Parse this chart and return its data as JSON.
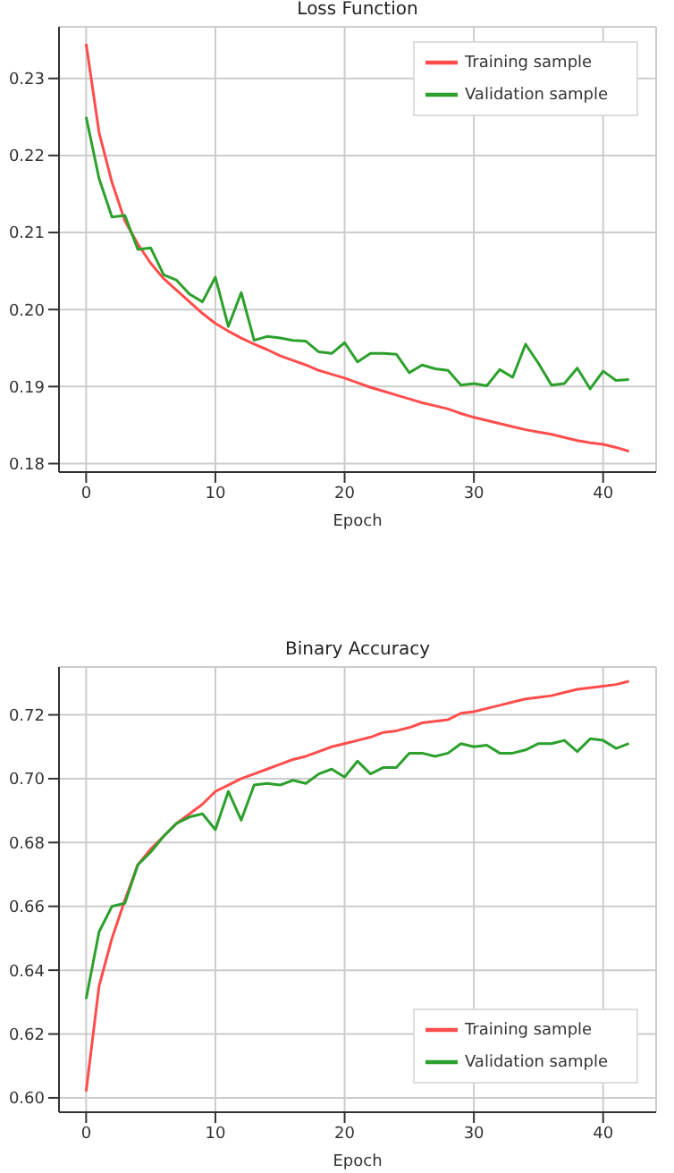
{
  "chart_data": [
    {
      "type": "line",
      "title": "Loss Function",
      "xlabel": "Epoch",
      "x": [
        0,
        1,
        2,
        3,
        4,
        5,
        6,
        7,
        8,
        9,
        10,
        11,
        12,
        13,
        14,
        15,
        16,
        17,
        18,
        19,
        20,
        21,
        22,
        23,
        24,
        25,
        26,
        27,
        28,
        29,
        30,
        31,
        32,
        33,
        34,
        35,
        36,
        37,
        38,
        39,
        40,
        41,
        42
      ],
      "series": [
        {
          "name": "Training sample",
          "color": "#ff4d4d",
          "values": [
            0.2345,
            0.223,
            0.2165,
            0.2115,
            0.2085,
            0.206,
            0.204,
            0.2025,
            0.201,
            0.1995,
            0.1982,
            0.1972,
            0.1963,
            0.1955,
            0.1948,
            0.194,
            0.1934,
            0.1928,
            0.1921,
            0.1916,
            0.1911,
            0.1905,
            0.1899,
            0.1894,
            0.1889,
            0.1884,
            0.1879,
            0.1875,
            0.1871,
            0.1865,
            0.186,
            0.1856,
            0.1852,
            0.1848,
            0.1844,
            0.1841,
            0.1838,
            0.1834,
            0.183,
            0.1827,
            0.1825,
            0.1821,
            0.1816
          ]
        },
        {
          "name": "Validation sample",
          "color": "#2ca02c",
          "values": [
            0.225,
            0.217,
            0.212,
            0.2122,
            0.2078,
            0.208,
            0.2045,
            0.2038,
            0.202,
            0.201,
            0.2042,
            0.1978,
            0.2022,
            0.196,
            0.1965,
            0.1963,
            0.196,
            0.1959,
            0.1945,
            0.1943,
            0.1957,
            0.1932,
            0.1943,
            0.1943,
            0.1942,
            0.1918,
            0.1928,
            0.1923,
            0.1921,
            0.1902,
            0.1904,
            0.1901,
            0.1922,
            0.1912,
            0.1955,
            0.193,
            0.1902,
            0.1904,
            0.1924,
            0.1897,
            0.192,
            0.1908,
            0.1909
          ]
        }
      ],
      "xlim": [
        -2.1,
        44.1
      ],
      "xticks": [
        0,
        10,
        20,
        30,
        40
      ],
      "ylim": [
        0.1789,
        0.2367
      ],
      "yticks": [
        0.18,
        0.19,
        {
          "value": 0.2,
          "label": "0.20"
        },
        0.21,
        0.22,
        0.23
      ],
      "grid": true,
      "legend": "top right",
      "marker": "none",
      "line_style": "solid"
    },
    {
      "type": "line",
      "title": "Binary Accuracy",
      "xlabel": "Epoch",
      "x": [
        0,
        1,
        2,
        3,
        4,
        5,
        6,
        7,
        8,
        9,
        10,
        11,
        12,
        13,
        14,
        15,
        16,
        17,
        18,
        19,
        20,
        21,
        22,
        23,
        24,
        25,
        26,
        27,
        28,
        29,
        30,
        31,
        32,
        33,
        34,
        35,
        36,
        37,
        38,
        39,
        40,
        41,
        42
      ],
      "series": [
        {
          "name": "Training sample",
          "color": "#ff4d4d",
          "values": [
            0.602,
            0.635,
            0.65,
            0.662,
            0.673,
            0.678,
            0.682,
            0.686,
            0.689,
            0.692,
            0.696,
            0.698,
            0.7,
            0.7015,
            0.703,
            0.7045,
            0.706,
            0.707,
            0.7085,
            0.71,
            0.711,
            0.712,
            0.713,
            0.7145,
            0.715,
            0.716,
            0.7175,
            0.718,
            0.7185,
            0.7205,
            0.721,
            0.722,
            0.723,
            0.724,
            0.725,
            0.7255,
            0.726,
            0.727,
            0.728,
            0.7285,
            0.729,
            0.7295,
            0.7305
          ]
        },
        {
          "name": "Validation sample",
          "color": "#2ca02c",
          "values": [
            0.631,
            0.652,
            0.66,
            0.661,
            0.673,
            0.677,
            0.682,
            0.686,
            0.688,
            0.689,
            0.684,
            0.696,
            0.687,
            0.698,
            0.6985,
            0.698,
            0.6995,
            0.6985,
            0.7015,
            0.703,
            0.7005,
            0.7055,
            0.7015,
            0.7035,
            0.7035,
            0.708,
            0.708,
            0.707,
            0.708,
            0.711,
            0.71,
            0.7105,
            0.708,
            0.708,
            0.709,
            0.711,
            0.711,
            0.712,
            0.7085,
            0.7125,
            0.712,
            0.7095,
            0.711
          ]
        }
      ],
      "xlim": [
        -2.1,
        44.1
      ],
      "xticks": [
        0,
        10,
        20,
        30,
        40
      ],
      "ylim": [
        0.5955,
        0.735
      ],
      "yticks": [
        {
          "value": 0.6,
          "label": "0.60"
        },
        0.62,
        0.64,
        0.66,
        0.68,
        {
          "value": 0.7,
          "label": "0.70"
        },
        0.72
      ],
      "grid": true,
      "legend": "bottom right",
      "marker": "none",
      "line_style": "solid"
    }
  ]
}
